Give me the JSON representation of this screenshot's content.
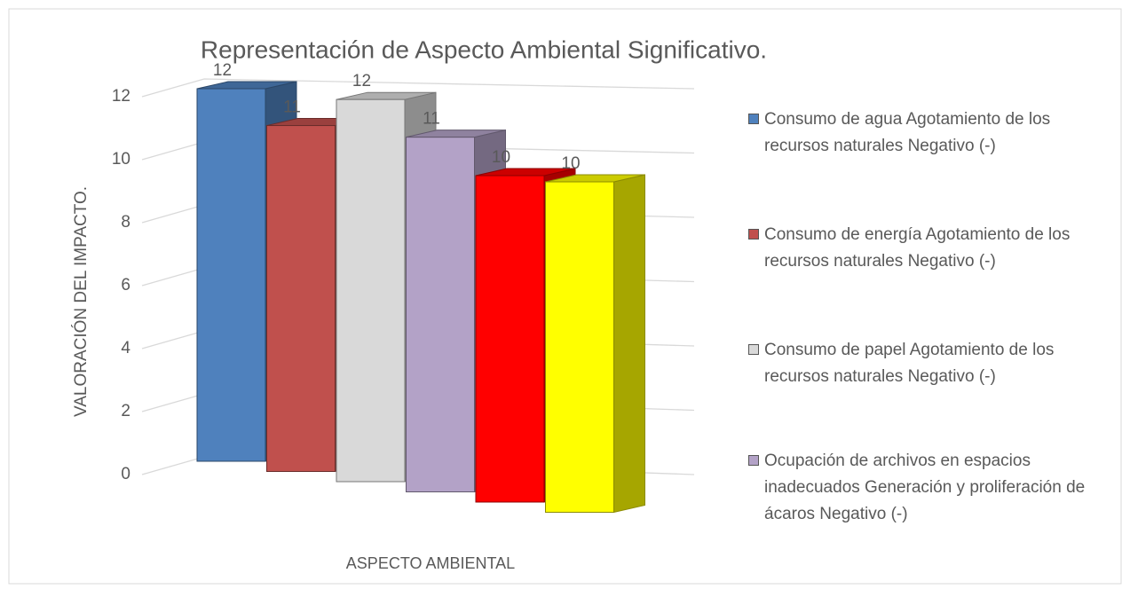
{
  "chart_data": {
    "type": "bar",
    "title": "Representación de Aspecto Ambiental Significativo.",
    "y_label": "VALORACIÓN DEL IMPACTO.",
    "x_label": "ASPECTO AMBIENTAL",
    "ylim": [
      0,
      12
    ],
    "yticks": [
      0,
      2,
      4,
      6,
      8,
      10,
      12
    ],
    "grid": true,
    "legend": "right",
    "series": [
      {
        "name": "Consumo de agua Agotamiento de los recursos naturales Negativo (-)",
        "color": "#4f81bd",
        "values": [
          12
        ]
      },
      {
        "name": "Consumo de energía Agotamiento de los recursos naturales Negativo (-)",
        "color": "#c0504d",
        "values": [
          11
        ]
      },
      {
        "name": "Consumo de papel Agotamiento de los recursos naturales Negativo (-)",
        "color": "#d9d9d9",
        "values": [
          12
        ]
      },
      {
        "name": "Ocupación de archivos en espacios inadecuados Generación y proliferación de ácaros Negativo (-)",
        "color": "#b3a2c7",
        "values": [
          11
        ]
      },
      {
        "color": "#ff0000",
        "values": [
          10
        ]
      },
      {
        "color": "#ffff00",
        "values": [
          10
        ]
      }
    ]
  }
}
